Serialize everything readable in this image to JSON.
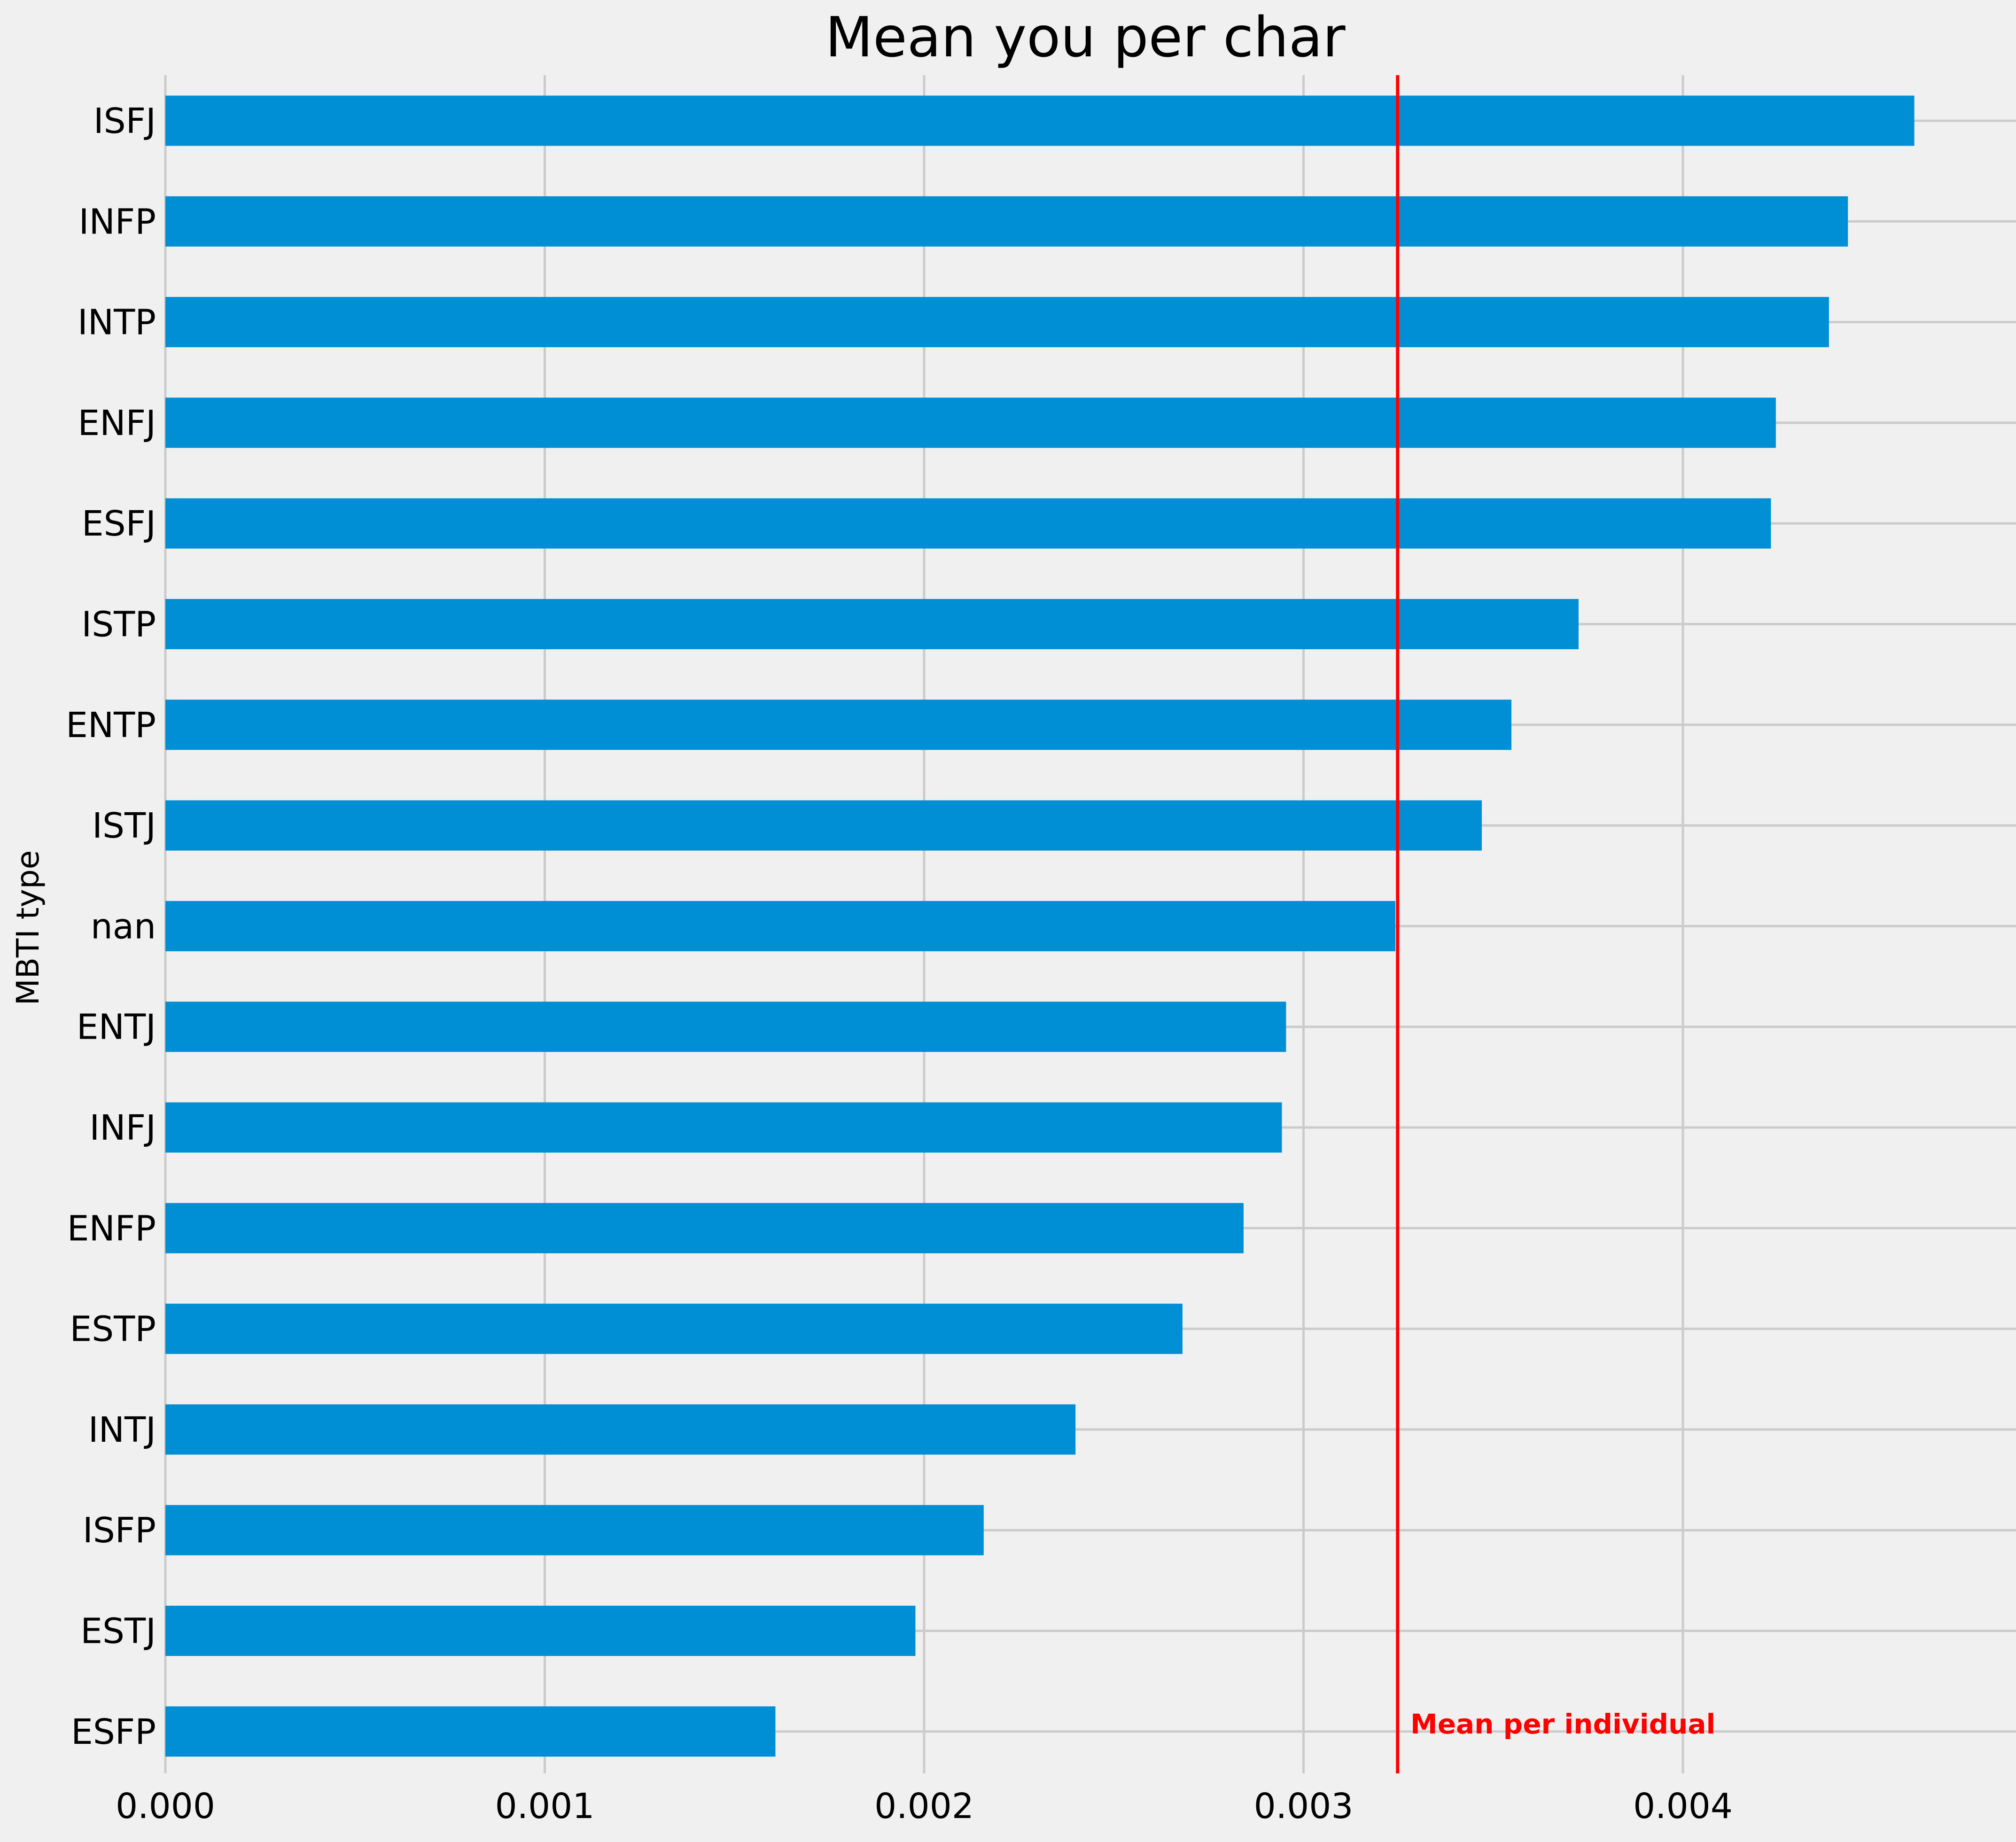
{
  "colors": {
    "background": "#f0f0f0",
    "bar": "#008fd5",
    "grid": "#cbcbcb",
    "mean_line": "#ff0000",
    "text": "#000000"
  },
  "chart_data": {
    "type": "bar",
    "orientation": "horizontal",
    "title": "Mean you per char",
    "xlabel": "",
    "ylabel": "MBTI type",
    "categories": [
      "ISFJ",
      "INFP",
      "INTP",
      "ENFJ",
      "ESFJ",
      "ISTP",
      "ENTP",
      "ISTJ",
      "nan",
      "ENTJ",
      "INFJ",
      "ENFP",
      "ESTP",
      "INTJ",
      "ISFP",
      "ESTJ",
      "ESFP"
    ],
    "values": [
      0.00461,
      0.004435,
      0.004385,
      0.004245,
      0.004232,
      0.003725,
      0.003548,
      0.00347,
      0.003242,
      0.002954,
      0.002943,
      0.002842,
      0.002681,
      0.002399,
      0.002157,
      0.001977,
      0.001608
    ],
    "xlim": [
      0,
      0.00483
    ],
    "x_ticks": [
      0,
      0.001,
      0.002,
      0.003,
      0.004
    ],
    "x_tick_labels": [
      "0.000",
      "0.001",
      "0.002",
      "0.003",
      "0.004"
    ],
    "grid": true,
    "reference_line": {
      "value": 0.003248,
      "label": "Mean per individual"
    }
  }
}
